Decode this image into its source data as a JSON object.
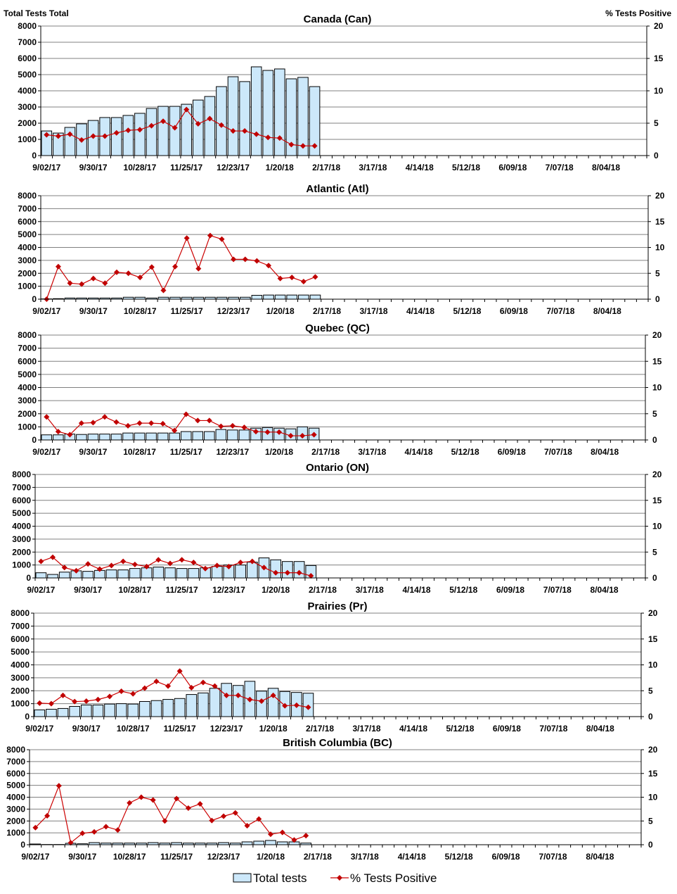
{
  "chart_data": [
    {
      "type": "bar+line",
      "title": "Canada (Can)",
      "ylabel_left": "Total Tests Total",
      "ylabel_right": "% Tests Positive",
      "ylim_left": [
        0,
        8000
      ],
      "ylim_right": [
        0,
        20
      ],
      "yticks_left": [
        0,
        1000,
        2000,
        3000,
        4000,
        5000,
        6000,
        7000,
        8000
      ],
      "yticks_right": [
        0,
        5,
        10,
        15,
        20
      ],
      "total_tests": [
        1520,
        1390,
        1740,
        1960,
        2170,
        2350,
        2350,
        2480,
        2610,
        2910,
        3040,
        3040,
        3170,
        3430,
        3650,
        4260,
        4870,
        4570,
        5480,
        5260,
        5350,
        4740,
        4830,
        4260
      ],
      "pct_positive": [
        3.2,
        3.0,
        3.3,
        2.4,
        3.0,
        3.0,
        3.5,
        3.9,
        4.0,
        4.6,
        5.3,
        4.3,
        7.1,
        4.9,
        5.7,
        4.7,
        3.8,
        3.8,
        3.3,
        2.8,
        2.7,
        1.7,
        1.5,
        1.5
      ]
    },
    {
      "type": "bar+line",
      "title": "Atlantic (Atl)",
      "ylabel_left": "",
      "ylabel_right": "",
      "ylim_left": [
        0,
        8000
      ],
      "ylim_right": [
        0,
        20
      ],
      "yticks_left": [
        0,
        1000,
        2000,
        3000,
        4000,
        5000,
        6000,
        7000,
        8000
      ],
      "yticks_right": [
        0,
        5,
        10,
        15,
        20
      ],
      "total_tests": [
        20,
        40,
        90,
        90,
        90,
        90,
        90,
        150,
        150,
        90,
        150,
        150,
        150,
        150,
        150,
        150,
        150,
        150,
        300,
        320,
        320,
        320,
        320,
        320
      ],
      "pct_positive": [
        0,
        6.3,
        3.1,
        2.9,
        4.0,
        3.1,
        5.2,
        5.0,
        4.2,
        6.2,
        1.7,
        6.3,
        11.8,
        5.9,
        12.3,
        11.6,
        7.7,
        7.7,
        7.4,
        6.5,
        4.0,
        4.2,
        3.4,
        4.3
      ]
    },
    {
      "type": "bar+line",
      "title": "Quebec (QC)",
      "ylabel_left": "",
      "ylabel_right": "",
      "ylim_left": [
        0,
        8000
      ],
      "ylim_right": [
        0,
        20
      ],
      "yticks_left": [
        0,
        1000,
        2000,
        3000,
        4000,
        5000,
        6000,
        7000,
        8000
      ],
      "yticks_right": [
        0,
        5,
        10,
        15,
        20
      ],
      "total_tests": [
        390,
        390,
        450,
        420,
        450,
        450,
        450,
        530,
        530,
        530,
        530,
        530,
        640,
        640,
        640,
        800,
        760,
        760,
        900,
        950,
        900,
        850,
        1000,
        900
      ],
      "pct_positive": [
        4.4,
        1.6,
        1.0,
        3.2,
        3.3,
        4.4,
        3.4,
        2.7,
        3.2,
        3.2,
        3.1,
        1.8,
        4.9,
        3.7,
        3.7,
        2.6,
        2.7,
        2.4,
        1.6,
        1.5,
        1.5,
        0.8,
        0.8,
        1.0
      ]
    },
    {
      "type": "bar+line",
      "title": "Ontario (ON)",
      "ylabel_left": "",
      "ylabel_right": "",
      "ylim_left": [
        0,
        8000
      ],
      "ylim_right": [
        0,
        20
      ],
      "yticks_left": [
        0,
        1000,
        2000,
        3000,
        4000,
        5000,
        6000,
        7000,
        8000
      ],
      "yticks_right": [
        0,
        5,
        10,
        15,
        20
      ],
      "total_tests": [
        400,
        270,
        450,
        550,
        510,
        580,
        620,
        620,
        730,
        780,
        840,
        780,
        730,
        730,
        780,
        890,
        1000,
        1000,
        1220,
        1550,
        1400,
        1270,
        1270,
        960
      ],
      "pct_positive": [
        3.2,
        4.0,
        2.0,
        1.4,
        2.7,
        1.7,
        2.4,
        3.2,
        2.6,
        2.2,
        3.5,
        2.8,
        3.5,
        3.0,
        1.8,
        2.4,
        2.2,
        3.0,
        3.2,
        2.0,
        1.0,
        1.0,
        1.0,
        0.4
      ]
    },
    {
      "type": "bar+line",
      "title": "Prairies (Pr)",
      "ylabel_left": "",
      "ylabel_right": "",
      "ylim_left": [
        0,
        8000
      ],
      "ylim_right": [
        0,
        20
      ],
      "yticks_left": [
        0,
        1000,
        2000,
        3000,
        4000,
        5000,
        6000,
        7000,
        8000
      ],
      "yticks_right": [
        0,
        5,
        10,
        15,
        20
      ],
      "total_tests": [
        520,
        570,
        630,
        790,
        900,
        900,
        970,
        1000,
        970,
        1170,
        1240,
        1330,
        1400,
        1710,
        1830,
        2190,
        2570,
        2410,
        2730,
        1970,
        2190,
        1940,
        1870,
        1810
      ],
      "pct_positive": [
        2.6,
        2.5,
        4.1,
        2.9,
        3.0,
        3.3,
        3.9,
        4.9,
        4.4,
        5.5,
        6.8,
        5.9,
        8.8,
        5.6,
        6.6,
        5.9,
        4.1,
        4.1,
        3.3,
        3.0,
        4.1,
        2.1,
        2.2,
        1.8
      ]
    },
    {
      "type": "bar+line",
      "title": "British Columbia (BC)",
      "ylabel_left": "",
      "ylabel_right": "",
      "ylim_left": [
        0,
        8000
      ],
      "ylim_right": [
        0,
        20
      ],
      "yticks_left": [
        0,
        1000,
        2000,
        3000,
        4000,
        5000,
        6000,
        7000,
        8000
      ],
      "yticks_right": [
        0,
        5,
        10,
        15,
        20
      ],
      "total_tests": [
        60,
        20,
        20,
        120,
        80,
        180,
        140,
        140,
        140,
        140,
        180,
        140,
        180,
        140,
        140,
        140,
        180,
        140,
        240,
        300,
        360,
        240,
        240,
        140
      ],
      "pct_positive": [
        3.6,
        6.1,
        12.4,
        0.4,
        2.4,
        2.7,
        3.8,
        3.1,
        8.8,
        10.0,
        9.4,
        5.0,
        9.7,
        7.7,
        8.6,
        5.1,
        6.0,
        6.7,
        4.0,
        5.4,
        2.2,
        2.6,
        1.0,
        1.9
      ]
    }
  ],
  "x_axis": {
    "xlim": [
      "9/02/17",
      "8/25/18"
    ],
    "tick_labels": [
      "9/02/17",
      "9/30/17",
      "10/28/17",
      "11/25/17",
      "12/23/17",
      "1/20/18",
      "2/17/18",
      "3/17/18",
      "4/14/18",
      "5/12/18",
      "6/09/18",
      "7/07/18",
      "8/04/18"
    ]
  },
  "legend": {
    "placement": "bottom",
    "bar_label": "Total tests",
    "line_label": "% Tests Positive"
  },
  "colors": {
    "bar_fill": "#cce8fa",
    "bar_stroke": "#000000",
    "line": "#cc0000",
    "marker": "#c00000",
    "grid": "#808080"
  }
}
